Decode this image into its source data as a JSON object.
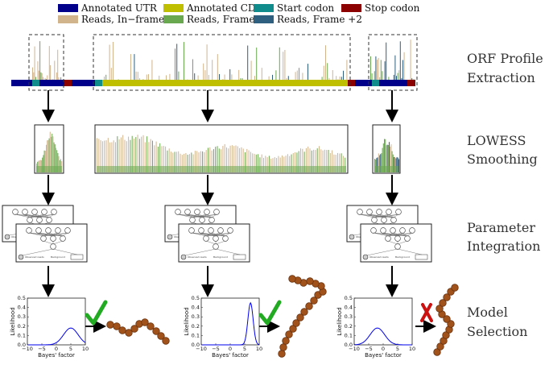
{
  "legend": {
    "items": [
      {
        "label": "Annotated UTR",
        "color": "#00008b"
      },
      {
        "label": "Reads, In−frame",
        "color": "#d2b48c"
      },
      {
        "label": "Annotated CDS",
        "color": "#bfbf00"
      },
      {
        "label": "Reads, Frame +1",
        "color": "#6aa84f"
      },
      {
        "label": "Start codon",
        "color": "#108c8c"
      },
      {
        "label": "Reads, Frame +2",
        "color": "#2f5f7f"
      },
      {
        "label": "Stop codon",
        "color": "#8b0000"
      }
    ]
  },
  "steps": [
    {
      "line1": "ORF Profile",
      "line2": "Extraction"
    },
    {
      "line1": "LOWESS",
      "line2": "Smoothing"
    },
    {
      "line1": "Parameter",
      "line2": "Integration"
    },
    {
      "line1": "Model",
      "line2": "Selection"
    }
  ],
  "colors": {
    "utr": "#00008b",
    "cds": "#bfbf00",
    "start": "#108c8c",
    "stop": "#8b0000",
    "inframe": "#d2b48c",
    "frame1": "#6aa84f",
    "frame2": "#2f5f7f",
    "check": "#22aa22",
    "cross": "#cc1111",
    "bead": "#a0521a",
    "bead_edge": "#6b3410",
    "curve": "#0000ee"
  },
  "model_selection": {
    "ylabel": "Likelihood",
    "xlabel": "Bayes' factor",
    "xticks": [
      "−10",
      "−5",
      "0",
      "5",
      "10"
    ],
    "yticks": [
      "0.5",
      "0.4",
      "0.3",
      "0.2",
      "0.1",
      "0.0"
    ],
    "xlim": [
      -10,
      10
    ],
    "ylim": [
      0,
      0.5
    ],
    "panels": [
      {
        "mean": 5,
        "sd": 2.5,
        "peak": 0.18,
        "decision": "accept"
      },
      {
        "mean": 7,
        "sd": 0.9,
        "peak": 0.45,
        "decision": "accept"
      },
      {
        "mean": -2,
        "sd": 2.5,
        "peak": 0.18,
        "decision": "reject"
      }
    ]
  },
  "graphical_model": {
    "top_label": "Observed reads",
    "left_label": "Observed reads",
    "right_label": "Background"
  }
}
